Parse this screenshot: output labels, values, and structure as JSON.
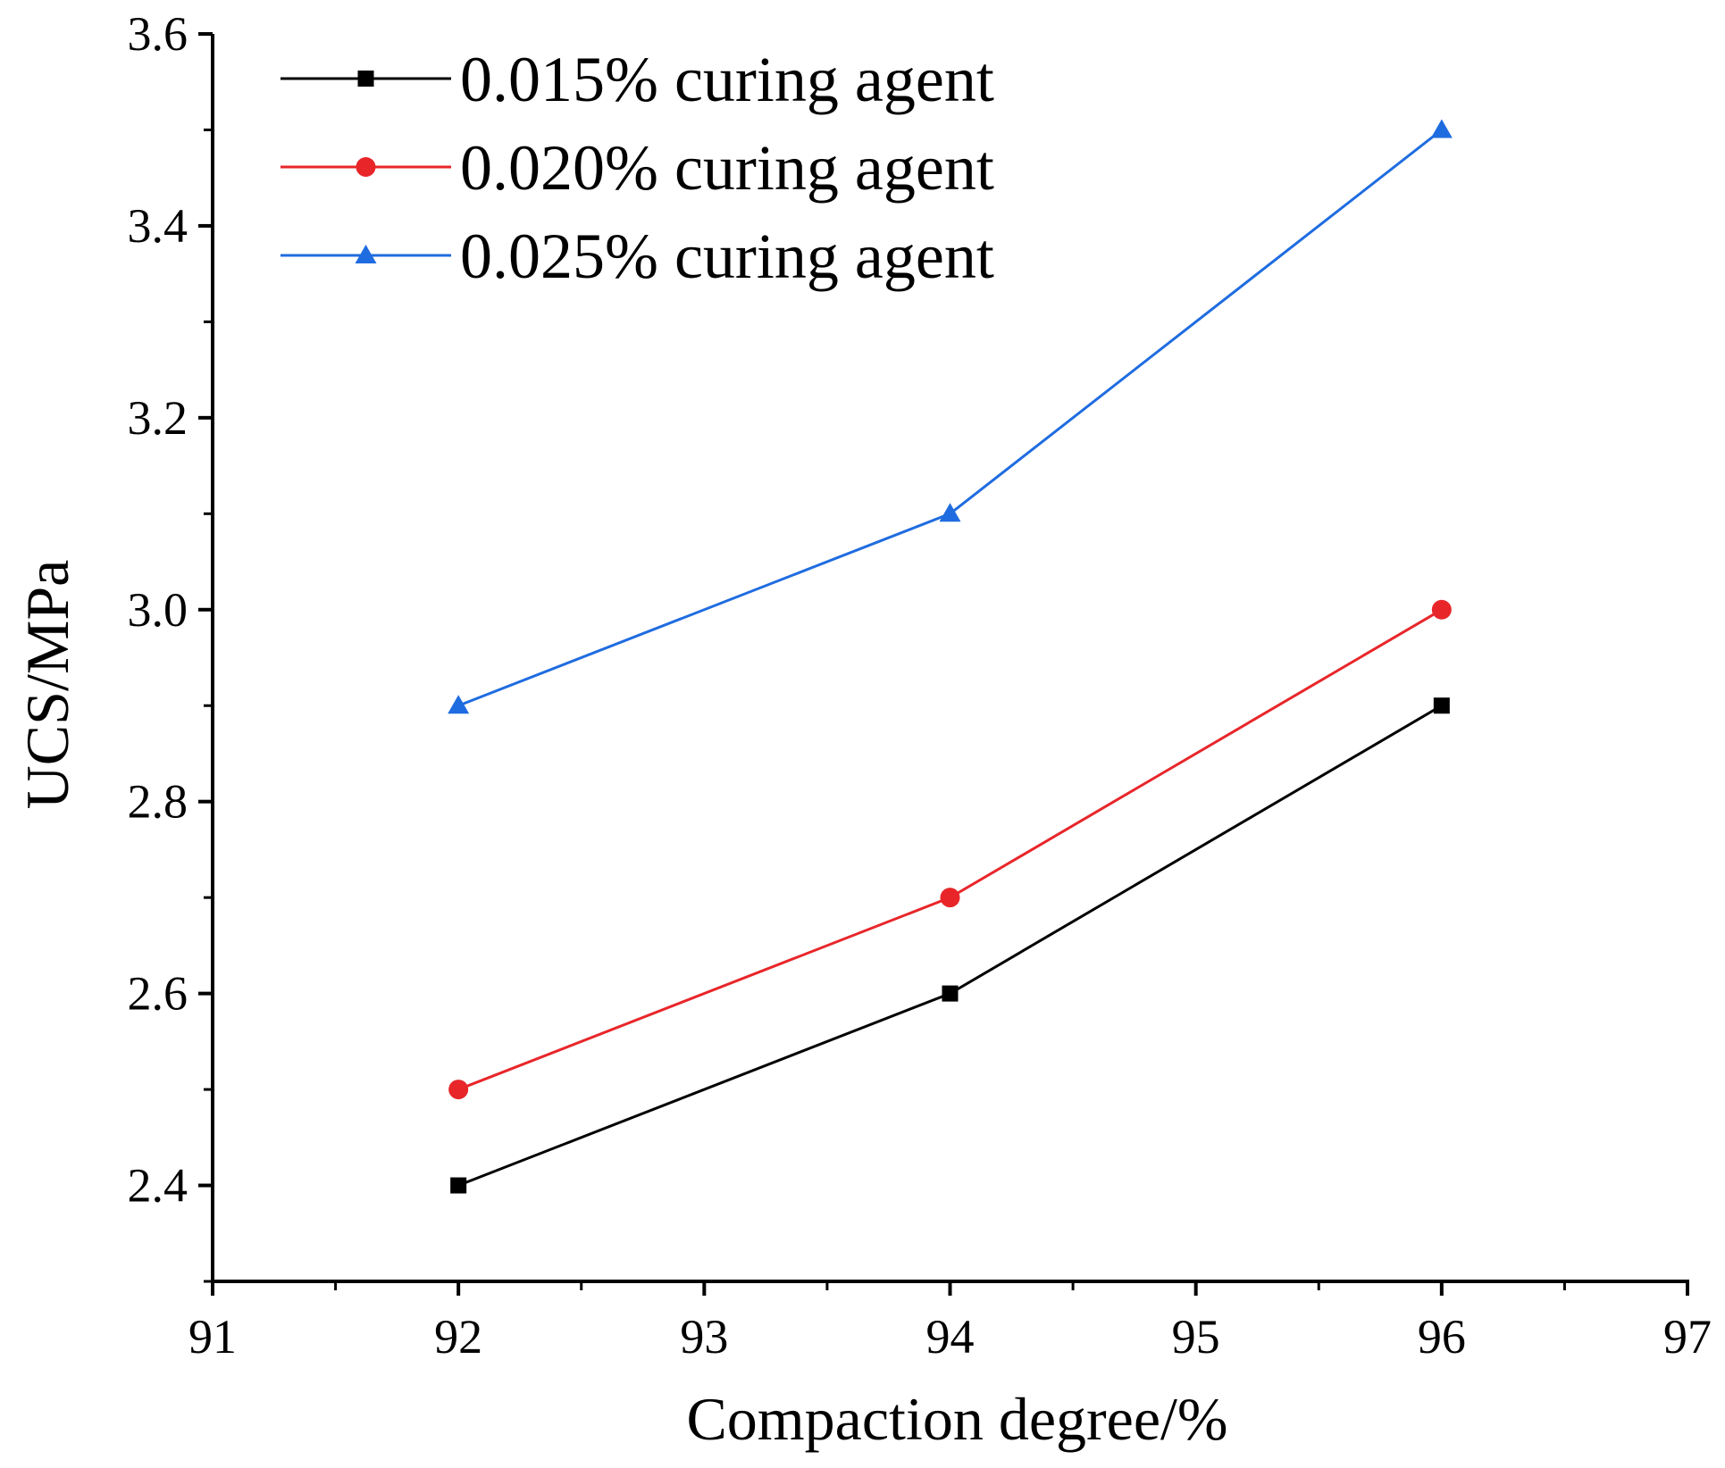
{
  "chart_data": {
    "type": "line",
    "title": "",
    "xlabel": "Compaction degree/%",
    "ylabel": "UCS/MPa",
    "xlim": [
      91,
      97
    ],
    "ylim": [
      2.3,
      3.6
    ],
    "xticks": [
      91,
      92,
      93,
      94,
      95,
      96,
      97
    ],
    "xtick_labels": [
      "91",
      "92",
      "93",
      "94",
      "95",
      "96",
      "97"
    ],
    "yticks": [
      2.4,
      2.6,
      2.8,
      3.0,
      3.2,
      3.4,
      3.6
    ],
    "ytick_labels": [
      "2.4",
      "2.6",
      "2.8",
      "3.0",
      "3.2",
      "3.4",
      "3.6"
    ],
    "grid": false,
    "legend_position": "top-left",
    "x": [
      92,
      94,
      96
    ],
    "series": [
      {
        "name": "0.015% curing agent",
        "values": [
          2.4,
          2.6,
          2.9
        ],
        "color": "#000000",
        "marker": "square"
      },
      {
        "name": "0.020% curing agent",
        "values": [
          2.5,
          2.7,
          3.0
        ],
        "color": "#e8262a",
        "marker": "circle"
      },
      {
        "name": "0.025% curing agent",
        "values": [
          2.9,
          3.1,
          3.5
        ],
        "color": "#1f6ce0",
        "marker": "triangle"
      }
    ]
  }
}
